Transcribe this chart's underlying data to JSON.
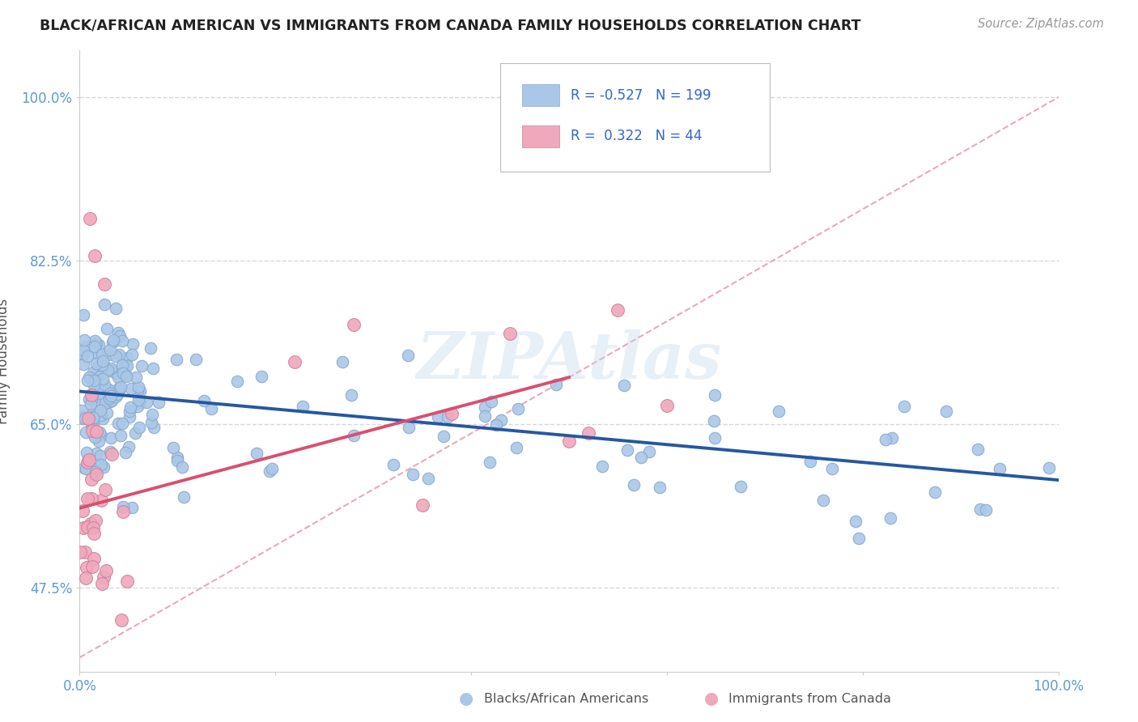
{
  "title": "BLACK/AFRICAN AMERICAN VS IMMIGRANTS FROM CANADA FAMILY HOUSEHOLDS CORRELATION CHART",
  "source": "Source: ZipAtlas.com",
  "ylabel": "Family Households",
  "x_min": 0.0,
  "x_max": 1.0,
  "y_min": 0.385,
  "y_max": 1.05,
  "y_ticks": [
    0.475,
    0.65,
    0.825,
    1.0
  ],
  "y_tick_labels": [
    "47.5%",
    "65.0%",
    "82.5%",
    "100.0%"
  ],
  "x_ticks": [
    0.0,
    0.2,
    0.4,
    0.6,
    0.8,
    1.0
  ],
  "x_tick_labels": [
    "0.0%",
    "",
    "",
    "",
    "",
    "100.0%"
  ],
  "legend_blue_r": "-0.527",
  "legend_blue_n": "199",
  "legend_pink_r": "0.322",
  "legend_pink_n": "44",
  "legend_label_blue": "Blacks/African Americans",
  "legend_label_pink": "Immigrants from Canada",
  "blue_color": "#aac7e8",
  "pink_color": "#f0a8bc",
  "blue_line_color": "#2558a0",
  "pink_line_color": "#d94f70",
  "diagonal_color": "#e8a0b0",
  "watermark": "ZIPAtlas",
  "background_color": "#ffffff",
  "grid_color": "#d8d8d8",
  "title_color": "#222222",
  "axis_label_color": "#5b9bd5",
  "blue_intercept": 0.685,
  "blue_slope": -0.095,
  "pink_intercept": 0.56,
  "pink_slope": 0.28,
  "blue_line_x_start": 0.0,
  "blue_line_x_end": 1.0,
  "pink_line_x_start": 0.0,
  "pink_line_x_end": 0.5
}
